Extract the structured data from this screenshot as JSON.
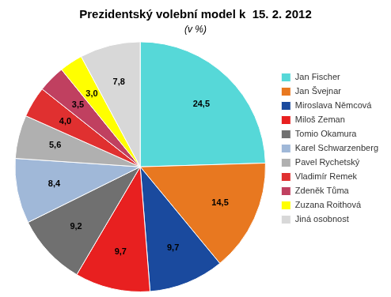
{
  "chart_data": {
    "type": "pie",
    "title": "Prezidentský volební model k  15. 2. 2012",
    "subtitle": "(v %)",
    "categories": [
      "Jan Fischer",
      "Jan Švejnar",
      "Miroslava Němcová",
      "Miloš Zeman",
      "Tomio Okamura",
      "Karel Schwarzenberg",
      "Pavel Rychetský",
      "Vladimír Remek",
      "Zdeněk Tůma",
      "Zuzana Roithová",
      "Jiná osobnost"
    ],
    "values": [
      24.5,
      14.5,
      9.7,
      9.7,
      9.2,
      8.4,
      5.6,
      4.0,
      3.5,
      3.0,
      7.8
    ],
    "value_labels": [
      "24,5",
      "14,5",
      "9,7",
      "9,7",
      "9,2",
      "8,4",
      "5,6",
      "4,0",
      "3,5",
      "3,0",
      "7,8"
    ],
    "colors": [
      "#56D8D8",
      "#E87820",
      "#1A4A9E",
      "#E82020",
      "#707070",
      "#A0B8D8",
      "#B0B0B0",
      "#E03030",
      "#C04060",
      "#FFFF00",
      "#D8D8D8"
    ],
    "data_labels": true,
    "legend": "right"
  }
}
